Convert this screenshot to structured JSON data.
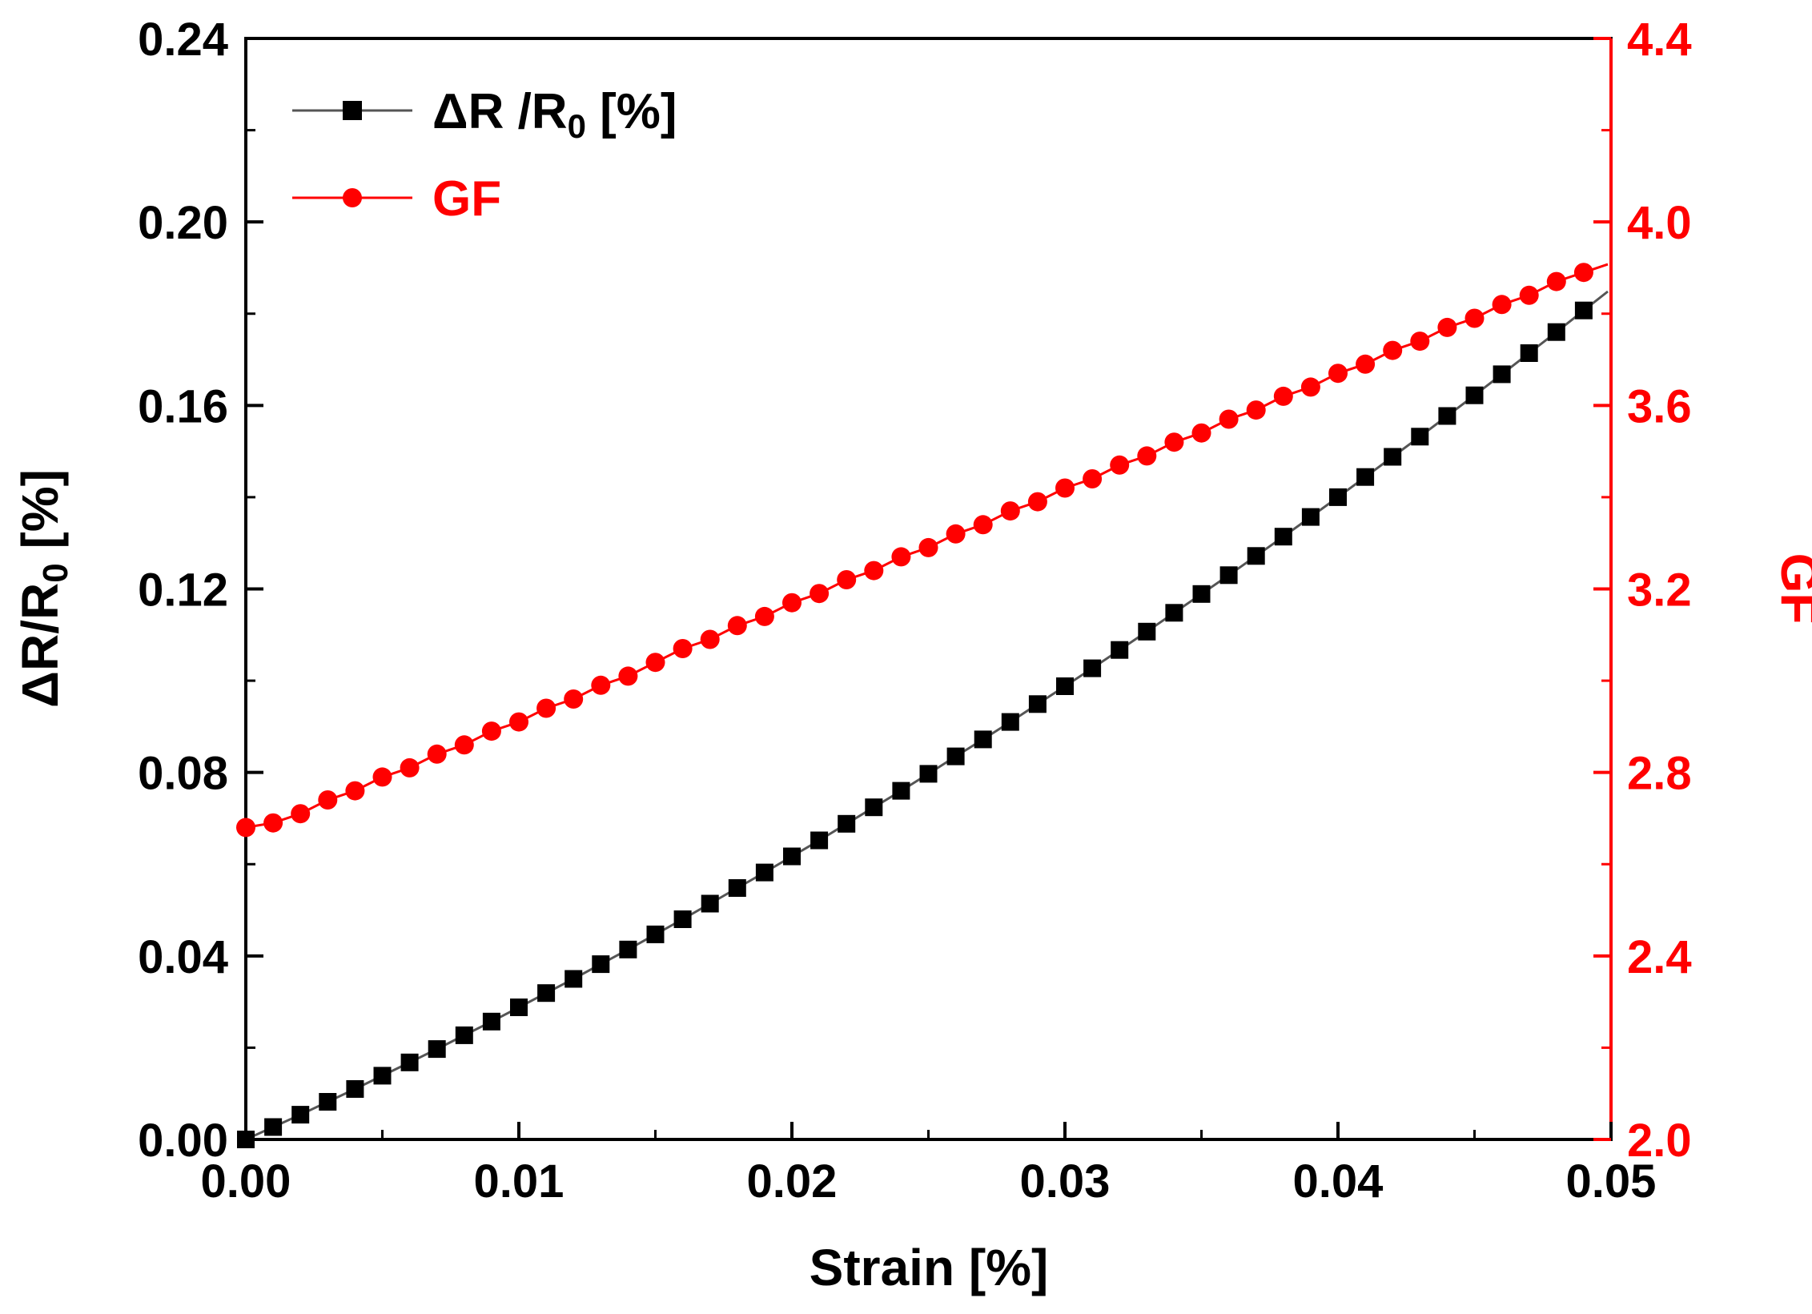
{
  "chart_data": {
    "type": "line",
    "title": "",
    "xlabel": "Strain [%]",
    "ylabel": {
      "prefix": "ΔR/R",
      "sub": "0",
      "suffix": " [%]"
    },
    "y2label": "GF",
    "xlim": [
      0,
      0.05
    ],
    "ylim": [
      0,
      0.24
    ],
    "y2lim": [
      2.0,
      4.4
    ],
    "x_ticks": [
      "0.00",
      "0.01",
      "0.02",
      "0.03",
      "0.04",
      "0.05"
    ],
    "y_ticks": [
      "0.00",
      "0.04",
      "0.08",
      "0.12",
      "0.16",
      "0.20",
      "0.24"
    ],
    "y2_ticks": [
      "2.0",
      "2.4",
      "2.8",
      "3.2",
      "3.6",
      "4.0",
      "4.4"
    ],
    "grid": false,
    "legend_position": "top-left",
    "colors": {
      "resistance": "#000000",
      "gf": "#ff0000",
      "axis": "#000000"
    },
    "series": [
      {
        "name": "ΔR /R0 [%]",
        "legend": {
          "prefix": "ΔR /R",
          "sub": "0",
          "suffix": " [%]"
        },
        "axis": "left",
        "marker": "square",
        "x": [
          0,
          0.001,
          0.002,
          0.003,
          0.004,
          0.005,
          0.006,
          0.007,
          0.008,
          0.009,
          0.01,
          0.011,
          0.012,
          0.013,
          0.014,
          0.015,
          0.016,
          0.017,
          0.018,
          0.019,
          0.02,
          0.021,
          0.022,
          0.023,
          0.024,
          0.025,
          0.026,
          0.027,
          0.028,
          0.029,
          0.03,
          0.031,
          0.032,
          0.033,
          0.034,
          0.035,
          0.036,
          0.037,
          0.038,
          0.039,
          0.04,
          0.041,
          0.042,
          0.043,
          0.044,
          0.045,
          0.046,
          0.047,
          0.048,
          0.049
        ],
        "values": [
          0.0,
          0.0027,
          0.0054,
          0.0082,
          0.011,
          0.0139,
          0.0168,
          0.0197,
          0.0227,
          0.0257,
          0.0288,
          0.0319,
          0.035,
          0.0382,
          0.0414,
          0.0447,
          0.048,
          0.0514,
          0.0548,
          0.0582,
          0.0617,
          0.0652,
          0.0688,
          0.0724,
          0.076,
          0.0797,
          0.0835,
          0.0872,
          0.091,
          0.0949,
          0.0988,
          0.1027,
          0.1067,
          0.1107,
          0.1148,
          0.1189,
          0.123,
          0.1272,
          0.1314,
          0.1357,
          0.14,
          0.1444,
          0.1488,
          0.1532,
          0.1577,
          0.1622,
          0.1668,
          0.1714,
          0.176,
          0.1807
        ]
      },
      {
        "name": "GF",
        "legend": {
          "prefix": "GF",
          "sub": "",
          "suffix": ""
        },
        "axis": "right",
        "marker": "circle",
        "x": [
          0,
          0.001,
          0.002,
          0.003,
          0.004,
          0.005,
          0.006,
          0.007,
          0.008,
          0.009,
          0.01,
          0.011,
          0.012,
          0.013,
          0.014,
          0.015,
          0.016,
          0.017,
          0.018,
          0.019,
          0.02,
          0.021,
          0.022,
          0.023,
          0.024,
          0.025,
          0.026,
          0.027,
          0.028,
          0.029,
          0.03,
          0.031,
          0.032,
          0.033,
          0.034,
          0.035,
          0.036,
          0.037,
          0.038,
          0.039,
          0.04,
          0.041,
          0.042,
          0.043,
          0.044,
          0.045,
          0.046,
          0.047,
          0.048,
          0.049
        ],
        "values": [
          2.68,
          2.69,
          2.71,
          2.74,
          2.76,
          2.79,
          2.81,
          2.84,
          2.86,
          2.89,
          2.91,
          2.94,
          2.96,
          2.99,
          3.01,
          3.04,
          3.07,
          3.09,
          3.12,
          3.14,
          3.17,
          3.19,
          3.22,
          3.24,
          3.27,
          3.29,
          3.32,
          3.34,
          3.37,
          3.39,
          3.42,
          3.44,
          3.47,
          3.49,
          3.52,
          3.54,
          3.57,
          3.59,
          3.62,
          3.64,
          3.67,
          3.69,
          3.72,
          3.74,
          3.77,
          3.79,
          3.82,
          3.84,
          3.87,
          3.89
        ]
      }
    ]
  }
}
